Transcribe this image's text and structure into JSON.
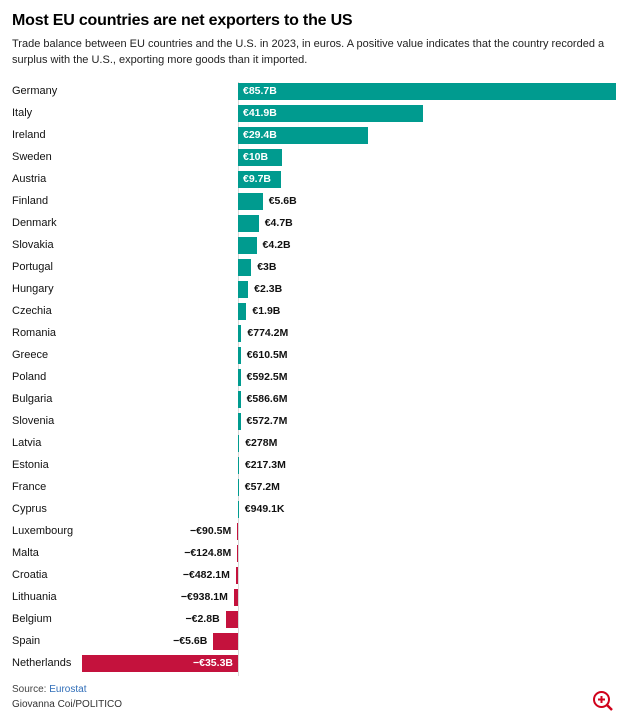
{
  "header": {
    "title": "Most EU countries are net exporters to the US",
    "subtitle": "Trade balance between EU countries and the U.S. in 2023, in euros. A positive value indicates that the country recorded a surplus with the U.S., exporting more goods than it imported."
  },
  "chart_data": {
    "type": "bar",
    "orientation": "horizontal",
    "title": "Most EU countries are net exporters to the US",
    "unit": "euros",
    "xlim_billions": [
      -40,
      90
    ],
    "positive_color": "#009b8f",
    "negative_color": "#c4123d",
    "inside_label_color": "#ffffff",
    "outside_label_color": "#111111",
    "categories": [
      "Germany",
      "Italy",
      "Ireland",
      "Sweden",
      "Austria",
      "Finland",
      "Denmark",
      "Slovakia",
      "Portugal",
      "Hungary",
      "Czechia",
      "Romania",
      "Greece",
      "Poland",
      "Bulgaria",
      "Slovenia",
      "Latvia",
      "Estonia",
      "France",
      "Cyprus",
      "Luxembourg",
      "Malta",
      "Croatia",
      "Lithuania",
      "Belgium",
      "Spain",
      "Netherlands"
    ],
    "values_billions": [
      85.7,
      41.9,
      29.4,
      10,
      9.7,
      5.6,
      4.7,
      4.2,
      3,
      2.3,
      1.9,
      0.7742,
      0.6105,
      0.5925,
      0.5866,
      0.5727,
      0.278,
      0.2173,
      0.0572,
      0.0009491,
      -0.0905,
      -0.1248,
      -0.4821,
      -0.9381,
      -2.8,
      -5.6,
      -35.3
    ],
    "value_labels": [
      "€85.7B",
      "€41.9B",
      "€29.4B",
      "€10B",
      "€9.7B",
      "€5.6B",
      "€4.7B",
      "€4.2B",
      "€3B",
      "€2.3B",
      "€1.9B",
      "€774.2M",
      "€610.5M",
      "€592.5M",
      "€586.6M",
      "€572.7M",
      "€278M",
      "€217.3M",
      "€57.2M",
      "€949.1K",
      "−€90.5M",
      "−€124.8M",
      "−€482.1M",
      "−€938.1M",
      "−€2.8B",
      "−€5.6B",
      "−€35.3B"
    ]
  },
  "footer": {
    "source_label": "Source:",
    "source_link": "Eurostat",
    "credit": "Giovanna Coi/POLITICO"
  },
  "icons": {
    "zoom": "zoom-in-icon",
    "zoom_color": "#d0021b"
  }
}
